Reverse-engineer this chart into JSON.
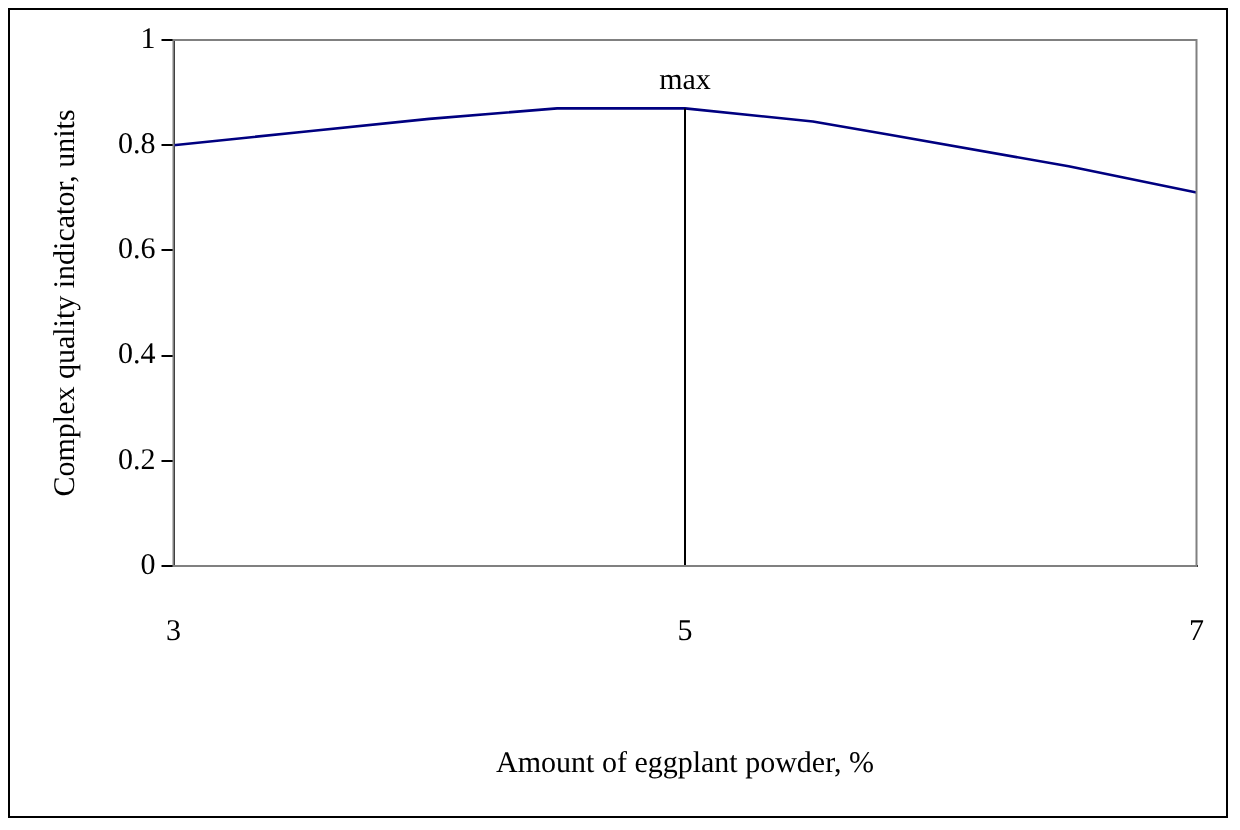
{
  "chart_data": {
    "type": "line",
    "xlabel": "Amount of eggplant powder, %",
    "ylabel": "Complex quality indicator, units",
    "x": [
      3,
      3.5,
      4,
      4.5,
      5,
      5.5,
      5.8,
      6.5,
      7
    ],
    "series": [
      {
        "color": "#000080",
        "values": [
          0.8,
          0.825,
          0.85,
          0.87,
          0.87,
          0.845,
          0.82,
          0.76,
          0.71
        ]
      }
    ],
    "xlim": [
      3,
      7
    ],
    "xticks": [
      3,
      5,
      7
    ],
    "ylim": [
      0,
      1
    ],
    "yticks": [
      0,
      0.2,
      0.4,
      0.6,
      0.8,
      1
    ],
    "ref_lines": [
      {
        "axis": "x",
        "value": 5,
        "label": "max",
        "color": "#000000"
      }
    ],
    "grid": false,
    "legend": false,
    "marker": "none",
    "line_style": "solid"
  }
}
